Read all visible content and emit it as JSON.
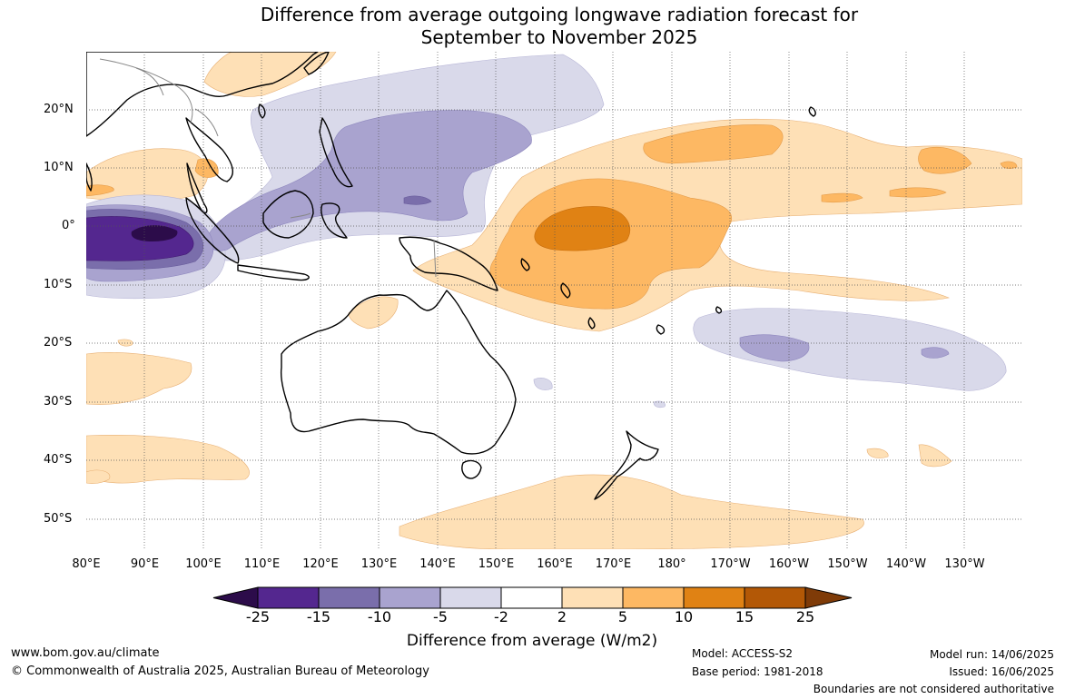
{
  "title_line1": "Difference from average outgoing longwave radiation forecast for",
  "title_line2": "September to November 2025",
  "lat_labels": [
    "20°N",
    "10°N",
    "0°",
    "10°S",
    "20°S",
    "30°S",
    "40°S",
    "50°S"
  ],
  "lon_labels": [
    "80°E",
    "90°E",
    "100°E",
    "110°E",
    "120°E",
    "130°E",
    "140°E",
    "150°E",
    "160°E",
    "170°E",
    "180°",
    "170°W",
    "160°W",
    "150°W",
    "140°W",
    "130°W"
  ],
  "colorbar": {
    "ticks": [
      "-25",
      "-15",
      "-10",
      "-5",
      "-2",
      "2",
      "5",
      "10",
      "15",
      "25"
    ],
    "colors": [
      "#2c0c4a",
      "#54278f",
      "#7a6eab",
      "#a9a3cf",
      "#d9d9ea",
      "#ffffff",
      "#fee0b6",
      "#fdb863",
      "#e08214",
      "#b35806",
      "#7f3b08"
    ],
    "title": "Difference from average (W/m2)"
  },
  "footer": {
    "website": "www.bom.gov.au/climate",
    "copyright": "© Commonwealth of Australia 2025, Australian Bureau of Meteorology",
    "model": "Model: ACCESS-S2",
    "base_period": "Base period: 1981-2018",
    "model_run": "Model run: 14/06/2025",
    "issued": "Issued: 16/06/2025",
    "disclaimer": "Boundaries are not considered authoritative"
  }
}
